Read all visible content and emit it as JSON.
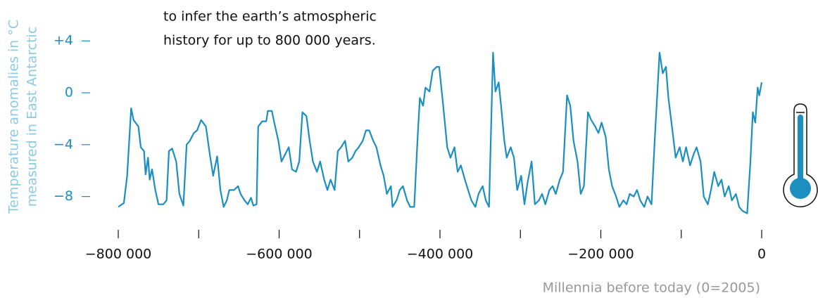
{
  "chart_data": {
    "type": "line",
    "annotation": [
      "to infer the earth’s atmospheric",
      "history for up to 800 000 years."
    ],
    "y_label": [
      "Temperature anomalies in °C",
      "measured in East Antarctic"
    ],
    "x_label": "Millennia before today (0=2005)",
    "xlim": [
      -800000,
      0
    ],
    "xticks": [
      {
        "value": -800000,
        "label": "−800 000"
      },
      {
        "value": -700000,
        "label": null
      },
      {
        "value": -600000,
        "label": "−600 000"
      },
      {
        "value": -500000,
        "label": null
      },
      {
        "value": -400000,
        "label": "−400 000"
      },
      {
        "value": -300000,
        "label": null
      },
      {
        "value": -200000,
        "label": "−200 000"
      },
      {
        "value": -100000,
        "label": null
      },
      0
    ],
    "ylim": [
      -10,
      5
    ],
    "yticks": [
      {
        "value": 4,
        "label": "+4"
      },
      0,
      {
        "value": -4,
        "label": "−4"
      },
      {
        "value": -8,
        "label": "−8"
      }
    ],
    "x": [
      -800000,
      -793000,
      -789000,
      -784000,
      -781000,
      -775000,
      -772000,
      -768000,
      -766000,
      -763000,
      -761000,
      -758000,
      -754000,
      -750000,
      -744000,
      -740000,
      -737000,
      -733000,
      -728000,
      -724000,
      -719000,
      -715000,
      -711000,
      -706000,
      -702000,
      -697000,
      -691000,
      -686000,
      -682000,
      -677000,
      -673000,
      -669000,
      -665000,
      -662000,
      -656000,
      -651000,
      -648000,
      -643000,
      -639000,
      -635000,
      -632000,
      -628000,
      -626000,
      -621000,
      -616000,
      -614000,
      -609000,
      -606000,
      -601000,
      -597000,
      -593000,
      -588000,
      -584000,
      -579000,
      -575000,
      -571000,
      -566000,
      -562000,
      -558000,
      -553000,
      -549000,
      -544000,
      -540000,
      -536000,
      -531000,
      -527000,
      -523000,
      -518000,
      -514000,
      -509000,
      -505000,
      -501000,
      -496000,
      -492000,
      -488000,
      -483000,
      -479000,
      -474000,
      -470000,
      -466000,
      -461000,
      -459000,
      -454000,
      -450000,
      -446000,
      -441000,
      -437000,
      -432000,
      -428000,
      -425000,
      -421000,
      -418000,
      -413000,
      -409000,
      -404000,
      -401000,
      -396000,
      -391000,
      -387000,
      -382000,
      -378000,
      -374000,
      -369000,
      -365000,
      -361000,
      -356000,
      -352000,
      -347000,
      -343000,
      -339000,
      -334000,
      -331000,
      -327000,
      -324000,
      -320000,
      -317000,
      -312000,
      -308000,
      -304000,
      -299000,
      -295000,
      -291000,
      -286000,
      -282000,
      -277000,
      -273000,
      -269000,
      -264000,
      -260000,
      -256000,
      -251000,
      -247000,
      -242000,
      -238000,
      -234000,
      -229000,
      -225000,
      -221000,
      -216000,
      -212000,
      -207000,
      -203000,
      -199000,
      -194000,
      -190000,
      -186000,
      -181000,
      -177000,
      -172000,
      -168000,
      -164000,
      -159000,
      -155000,
      -151000,
      -146000,
      -142000,
      -137000,
      -133000,
      -127000,
      -123000,
      -119000,
      -116000,
      -111000,
      -107000,
      -102000,
      -98000,
      -94000,
      -89000,
      -85000,
      -81000,
      -76000,
      -72000,
      -67000,
      -63000,
      -59000,
      -54000,
      -50000,
      -46000,
      -41000,
      -37000,
      -32000,
      -28000,
      -24000,
      -18000,
      -14000,
      -11000,
      -8000,
      -5000,
      -3000,
      0
    ],
    "series": [
      {
        "color": "#1a8fc0",
        "values": [
          -8.8,
          -8.5,
          -6.4,
          -1.2,
          -2.1,
          -2.6,
          -4.2,
          -4.5,
          -6.3,
          -5.0,
          -6.7,
          -5.9,
          -7.5,
          -8.6,
          -8.6,
          -8.3,
          -4.5,
          -4.3,
          -5.3,
          -7.8,
          -8.7,
          -4.0,
          -3.7,
          -3.1,
          -2.9,
          -2.1,
          -2.6,
          -4.8,
          -6.4,
          -4.9,
          -7.5,
          -8.8,
          -8.3,
          -7.5,
          -7.5,
          -7.2,
          -7.8,
          -8.3,
          -8.6,
          -8.1,
          -8.7,
          -8.6,
          -2.6,
          -2.2,
          -2.2,
          -1.4,
          -1.4,
          -2.3,
          -3.7,
          -5.3,
          -4.8,
          -4.2,
          -5.9,
          -6.1,
          -5.3,
          -1.5,
          -1.8,
          -3.7,
          -5.3,
          -6.1,
          -5.3,
          -6.7,
          -7.5,
          -6.7,
          -7.5,
          -4.5,
          -4.2,
          -3.7,
          -5.3,
          -5.0,
          -4.5,
          -4.2,
          -3.7,
          -2.9,
          -2.9,
          -3.7,
          -4.2,
          -5.6,
          -6.4,
          -7.8,
          -7.2,
          -8.8,
          -8.3,
          -7.5,
          -7.2,
          -8.3,
          -8.8,
          -8.8,
          -3.7,
          -0.4,
          -1.0,
          0.4,
          0.1,
          1.7,
          2.0,
          2.0,
          -1.0,
          -4.2,
          -5.0,
          -4.2,
          -6.1,
          -5.6,
          -6.7,
          -7.5,
          -8.3,
          -8.8,
          -7.8,
          -7.2,
          -8.3,
          -8.8,
          3.1,
          0.1,
          0.8,
          -1.0,
          -3.7,
          -5.0,
          -4.2,
          -5.0,
          -7.5,
          -6.4,
          -8.6,
          -6.9,
          -5.3,
          -8.6,
          -8.3,
          -7.8,
          -8.6,
          -7.5,
          -7.2,
          -7.8,
          -6.7,
          -6.1,
          -0.2,
          -1.0,
          -3.7,
          -5.3,
          -7.8,
          -7.2,
          -1.5,
          -2.1,
          -2.6,
          -3.1,
          -2.3,
          -3.4,
          -5.9,
          -7.2,
          -8.0,
          -8.8,
          -8.3,
          -8.6,
          -7.8,
          -8.0,
          -7.5,
          -8.3,
          -8.8,
          -8.0,
          -8.6,
          -3.7,
          3.1,
          1.5,
          2.0,
          -0.4,
          -2.9,
          -5.0,
          -4.2,
          -5.3,
          -4.2,
          -5.6,
          -4.8,
          -4.2,
          -5.3,
          -8.0,
          -8.6,
          -7.5,
          -6.1,
          -7.2,
          -6.7,
          -8.0,
          -7.2,
          -8.3,
          -7.8,
          -8.8,
          -9.1,
          -9.3,
          -5.3,
          -1.5,
          -2.3,
          0.4,
          -0.2,
          0.8
        ]
      }
    ]
  }
}
